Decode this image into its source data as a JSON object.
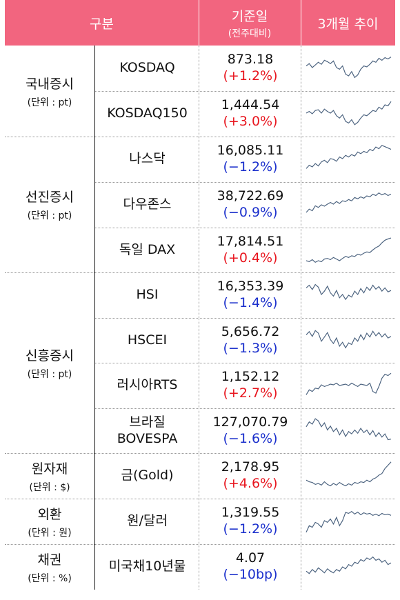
{
  "header": {
    "category": "구분",
    "base_date": "기준일",
    "base_date_sub": "(전주대비)",
    "trend": "3개월 추이"
  },
  "colors": {
    "header_bg": "#f2657f",
    "up": "#e8151e",
    "down": "#1a2fcc",
    "spark": "#4d6480"
  },
  "groups": [
    {
      "name": "국내증시",
      "unit": "(단위 : pt)"
    },
    {
      "name": "선진증시",
      "unit": "(단위 : pt)"
    },
    {
      "name": "신흥증시",
      "unit": "(단위 : pt)"
    },
    {
      "name": "원자재",
      "unit": "(단위 : $)"
    },
    {
      "name": "외환",
      "unit": "(단위 : 원)"
    },
    {
      "name": "채권",
      "unit": "(단위 : %)"
    }
  ],
  "rows": [
    {
      "name": "KOSDAQ",
      "value": "873.18",
      "change": "(+1.2%)",
      "dir": "up",
      "trend": [
        0.55,
        0.62,
        0.5,
        0.58,
        0.66,
        0.6,
        0.72,
        0.68,
        0.62,
        0.7,
        0.5,
        0.45,
        0.55,
        0.3,
        0.25,
        0.38,
        0.2,
        0.28,
        0.45,
        0.55,
        0.52,
        0.6,
        0.7,
        0.66,
        0.78,
        0.72,
        0.8,
        0.76,
        0.82
      ]
    },
    {
      "name": "KOSDAQ150",
      "value": "1,444.54",
      "change": "(+3.0%)",
      "dir": "up",
      "trend": [
        0.5,
        0.55,
        0.48,
        0.58,
        0.6,
        0.5,
        0.62,
        0.55,
        0.5,
        0.58,
        0.42,
        0.35,
        0.45,
        0.25,
        0.2,
        0.3,
        0.15,
        0.22,
        0.35,
        0.45,
        0.42,
        0.5,
        0.58,
        0.55,
        0.68,
        0.62,
        0.75,
        0.72,
        0.85
      ]
    },
    {
      "name": "나스닥",
      "value": "16,085.11",
      "change": "(−1.2%)",
      "dir": "down",
      "trend": [
        0.2,
        0.3,
        0.25,
        0.35,
        0.28,
        0.4,
        0.45,
        0.38,
        0.5,
        0.48,
        0.42,
        0.55,
        0.5,
        0.6,
        0.55,
        0.62,
        0.58,
        0.7,
        0.65,
        0.72,
        0.68,
        0.78,
        0.74,
        0.85,
        0.8,
        0.9,
        0.86,
        0.82,
        0.78
      ]
    },
    {
      "name": "다우존스",
      "value": "38,722.69",
      "change": "(−0.9%)",
      "dir": "down",
      "trend": [
        0.25,
        0.35,
        0.3,
        0.45,
        0.4,
        0.48,
        0.44,
        0.5,
        0.55,
        0.5,
        0.58,
        0.52,
        0.6,
        0.58,
        0.64,
        0.6,
        0.7,
        0.66,
        0.72,
        0.68,
        0.75,
        0.72,
        0.8,
        0.76,
        0.84,
        0.78,
        0.82,
        0.76,
        0.8
      ]
    },
    {
      "name": "독일 DAX",
      "value": "17,814.51",
      "change": "(+0.4%)",
      "dir": "up",
      "trend": [
        0.15,
        0.12,
        0.18,
        0.1,
        0.15,
        0.12,
        0.2,
        0.22,
        0.18,
        0.25,
        0.2,
        0.15,
        0.22,
        0.28,
        0.25,
        0.3,
        0.28,
        0.35,
        0.32,
        0.38,
        0.42,
        0.4,
        0.48,
        0.55,
        0.6,
        0.7,
        0.78,
        0.82,
        0.85
      ]
    },
    {
      "name": "HSI",
      "value": "16,353.39",
      "change": "(−1.4%)",
      "dir": "down",
      "trend": [
        0.7,
        0.78,
        0.65,
        0.8,
        0.72,
        0.5,
        0.6,
        0.75,
        0.55,
        0.45,
        0.62,
        0.4,
        0.5,
        0.35,
        0.48,
        0.42,
        0.6,
        0.5,
        0.68,
        0.55,
        0.72,
        0.62,
        0.78,
        0.66,
        0.74,
        0.6,
        0.7,
        0.58,
        0.62
      ]
    },
    {
      "name": "HSCEI",
      "value": "5,656.72",
      "change": "(−1.3%)",
      "dir": "down",
      "trend": [
        0.65,
        0.75,
        0.6,
        0.78,
        0.7,
        0.45,
        0.58,
        0.72,
        0.5,
        0.38,
        0.55,
        0.3,
        0.42,
        0.25,
        0.4,
        0.35,
        0.55,
        0.45,
        0.65,
        0.5,
        0.7,
        0.58,
        0.76,
        0.62,
        0.72,
        0.58,
        0.68,
        0.55,
        0.6
      ]
    },
    {
      "name": "러시아RTS",
      "value": "1,152.12",
      "change": "(+2.7%)",
      "dir": "up",
      "trend": [
        0.2,
        0.35,
        0.3,
        0.4,
        0.38,
        0.5,
        0.45,
        0.48,
        0.52,
        0.5,
        0.55,
        0.48,
        0.5,
        0.52,
        0.48,
        0.55,
        0.5,
        0.45,
        0.52,
        0.5,
        0.48,
        0.55,
        0.3,
        0.25,
        0.45,
        0.7,
        0.82,
        0.78,
        0.85
      ]
    },
    {
      "name": "브라질\nBOVESPA",
      "value": "127,070.79",
      "change": "(−1.6%)",
      "dir": "down",
      "trend": [
        0.6,
        0.75,
        0.68,
        0.85,
        0.78,
        0.6,
        0.72,
        0.5,
        0.62,
        0.45,
        0.55,
        0.35,
        0.5,
        0.3,
        0.45,
        0.38,
        0.5,
        0.4,
        0.55,
        0.42,
        0.5,
        0.35,
        0.48,
        0.3,
        0.42,
        0.28,
        0.38,
        0.2,
        0.22
      ]
    },
    {
      "name": "금(Gold)",
      "value": "2,178.95",
      "change": "(+4.6%)",
      "dir": "up",
      "trend": [
        0.35,
        0.3,
        0.28,
        0.22,
        0.25,
        0.2,
        0.3,
        0.22,
        0.18,
        0.25,
        0.2,
        0.28,
        0.22,
        0.18,
        0.24,
        0.2,
        0.28,
        0.25,
        0.3,
        0.28,
        0.35,
        0.3,
        0.38,
        0.42,
        0.5,
        0.55,
        0.7,
        0.8,
        0.9
      ]
    },
    {
      "name": "원/달러",
      "value": "1,319.55",
      "change": "(−1.2%)",
      "dir": "down",
      "trend": [
        0.15,
        0.35,
        0.3,
        0.45,
        0.4,
        0.3,
        0.5,
        0.45,
        0.55,
        0.4,
        0.6,
        0.35,
        0.5,
        0.75,
        0.72,
        0.78,
        0.7,
        0.76,
        0.68,
        0.74,
        0.7,
        0.72,
        0.66,
        0.7,
        0.65,
        0.72,
        0.68,
        0.7,
        0.66
      ]
    },
    {
      "name": "미국채10년물",
      "value": "4.07",
      "change": "(−10bp)",
      "dir": "down",
      "trend": [
        0.35,
        0.28,
        0.4,
        0.32,
        0.45,
        0.38,
        0.3,
        0.42,
        0.35,
        0.3,
        0.4,
        0.35,
        0.48,
        0.42,
        0.55,
        0.5,
        0.62,
        0.58,
        0.7,
        0.65,
        0.75,
        0.7,
        0.78,
        0.68,
        0.72,
        0.62,
        0.68,
        0.55,
        0.6
      ]
    }
  ]
}
